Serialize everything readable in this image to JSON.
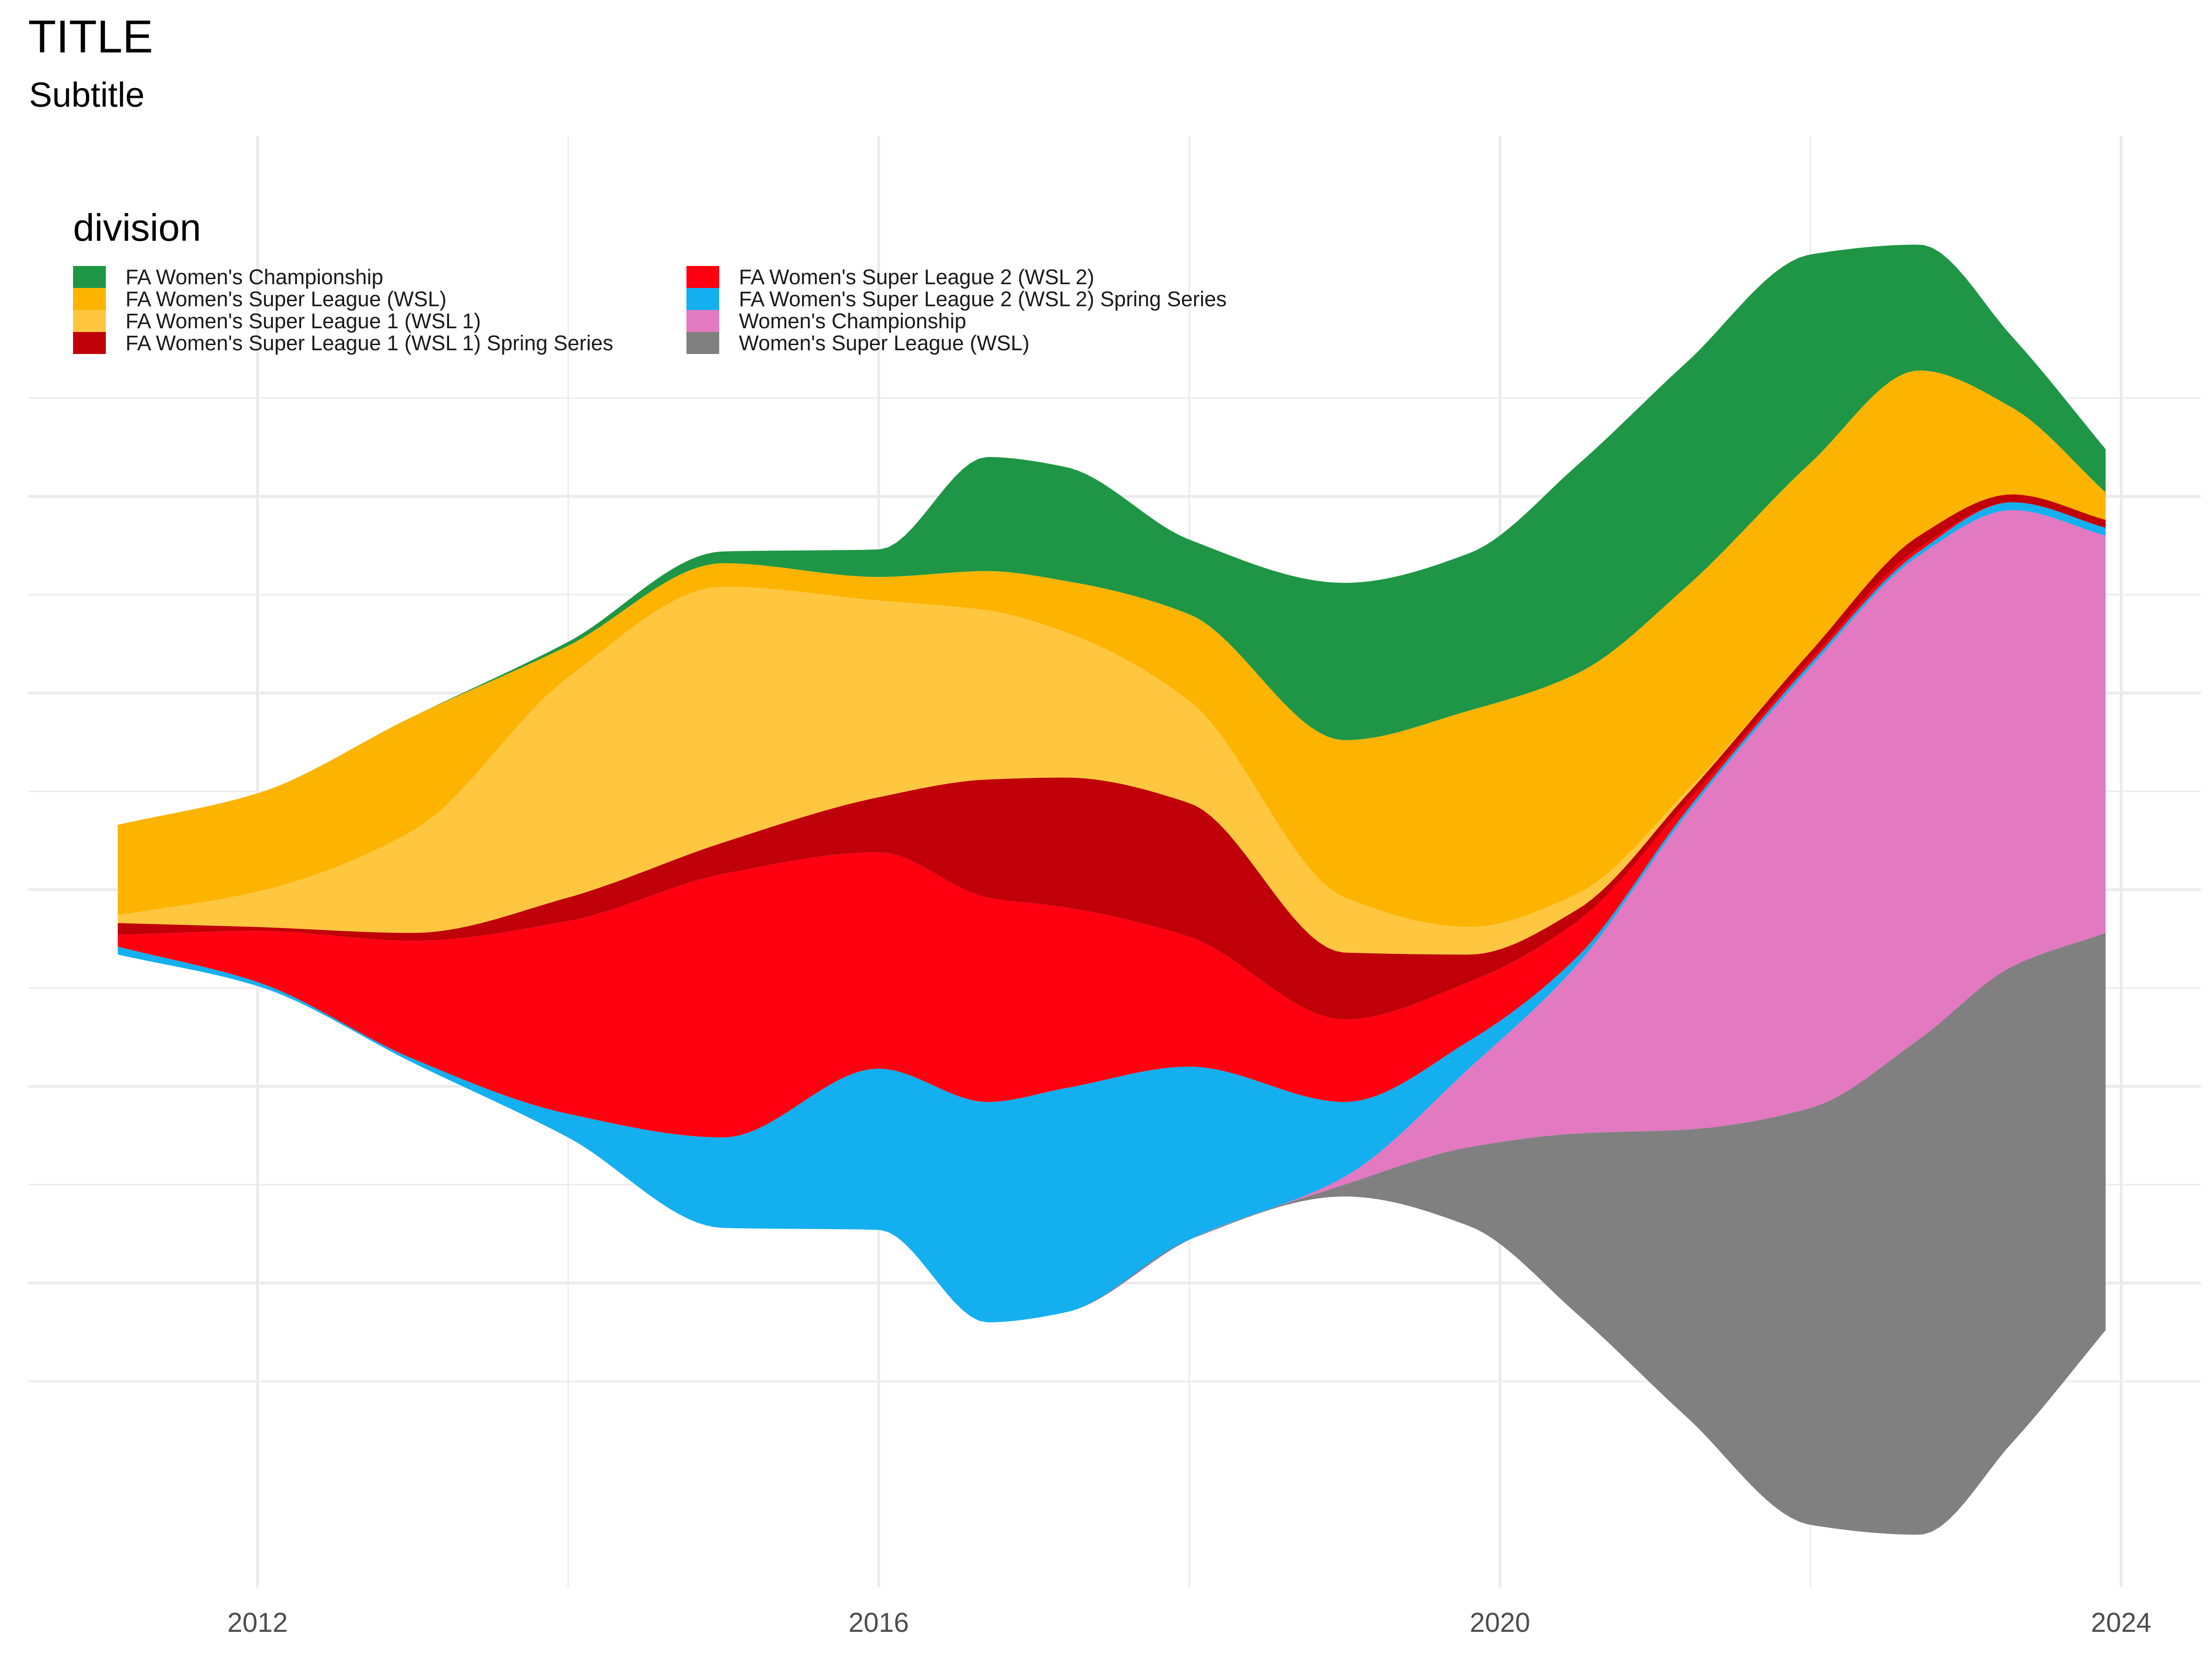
{
  "title": "TITLE",
  "subtitle": "Subtitle",
  "legend": {
    "title": "division",
    "items": [
      {
        "label": "FA Women's Championship",
        "color": "#1e9645"
      },
      {
        "label": "FA Women's Super League (WSL)",
        "color": "#fdb400"
      },
      {
        "label": "FA Women's Super League 1 (WSL 1)",
        "color": "#ffc740"
      },
      {
        "label": "FA Women's Super League 1 (WSL 1) Spring Series",
        "color": "#c00008"
      },
      {
        "label": "FA Women's Super League 2 (WSL 2)",
        "color": "#ff0010"
      },
      {
        "label": "FA Women's Super League 2 (WSL 2) Spring Series",
        "color": "#14afee"
      },
      {
        "label": "Women's Championship",
        "color": "#e279c1"
      },
      {
        "label": "Women's Super League (WSL)",
        "color": "#808080"
      }
    ]
  },
  "chart_data": {
    "type": "area",
    "variant": "streamgraph",
    "title": "TITLE",
    "subtitle": "Subtitle",
    "xlabel": "",
    "ylabel": "",
    "xlim": [
      2010.8,
      2024.5
    ],
    "ylim": [
      -1.5,
      1.4
    ],
    "x_ticks": [
      2012,
      2016,
      2020,
      2024
    ],
    "x_tick_labels": [
      "2012",
      "2016",
      "2020",
      "2024"
    ],
    "y_tick_labels": [],
    "grid": true,
    "legend_position": "top-left",
    "x": [
      2011.1,
      2012,
      2013,
      2014,
      2015,
      2016,
      2016.7,
      2017.2,
      2018,
      2019,
      2019.8,
      2020.5,
      2021.2,
      2022,
      2022.7,
      2023.3,
      2023.9
    ],
    "series": [
      {
        "name": "FA Women's Championship",
        "color": "#1e9645",
        "values": [
          0,
          0,
          0,
          0.01,
          0.03,
          0.07,
          0.29,
          0.29,
          0.19,
          0.4,
          0.4,
          0.53,
          0.57,
          0.53,
          0.32,
          0.18,
          0.11
        ]
      },
      {
        "name": "FA Women's Super League (WSL)",
        "color": "#fdb400",
        "values": [
          0.23,
          0.25,
          0.29,
          0.08,
          0.06,
          0.06,
          0.1,
          0.13,
          0.22,
          0.4,
          0.55,
          0.56,
          0.52,
          0.48,
          0.42,
          0.22,
          0.07
        ]
      },
      {
        "name": "FA Women's Super League 1 (WSL 1)",
        "color": "#ffc740",
        "values": [
          0.02,
          0.09,
          0.26,
          0.56,
          0.65,
          0.5,
          0.43,
          0.37,
          0.26,
          0.14,
          0.07,
          0.04,
          0.01,
          0,
          0,
          0,
          0
        ]
      },
      {
        "name": "FA Women's Super League 1 (WSL 1) Spring Series",
        "color": "#c00008",
        "values": [
          0.03,
          0.01,
          0.02,
          0.06,
          0.08,
          0.14,
          0.3,
          0.33,
          0.34,
          0.17,
          0.07,
          0.03,
          0.02,
          0.02,
          0.03,
          0.02,
          0.02
        ]
      },
      {
        "name": "FA Women's Super League 2 (WSL 2)",
        "color": "#ff0010",
        "values": [
          0.03,
          0.13,
          0.3,
          0.49,
          0.67,
          0.55,
          0.52,
          0.46,
          0.33,
          0.21,
          0.15,
          0.09,
          0.02,
          0.01,
          0.01,
          0,
          0
        ]
      },
      {
        "name": "FA Women's Super League 2 (WSL 2) Spring Series",
        "color": "#14afee",
        "values": [
          0.02,
          0.01,
          0.01,
          0.06,
          0.23,
          0.41,
          0.56,
          0.57,
          0.44,
          0.19,
          0.07,
          0.02,
          0.01,
          0.01,
          0.01,
          0.02,
          0.02
        ]
      },
      {
        "name": "Women's Championship",
        "color": "#e279c1",
        "values": [
          0,
          0,
          0,
          0,
          0,
          0,
          0,
          0,
          0,
          0.02,
          0.2,
          0.43,
          0.8,
          1.12,
          1.23,
          1.16,
          1.01
        ]
      },
      {
        "name": "Women's Super League (WSL)",
        "color": "#808080",
        "values": [
          0,
          0,
          0,
          0,
          0,
          0,
          0,
          0,
          0,
          0.03,
          0.2,
          0.46,
          0.73,
          1.06,
          1.26,
          1.21,
          1.01
        ]
      }
    ]
  }
}
